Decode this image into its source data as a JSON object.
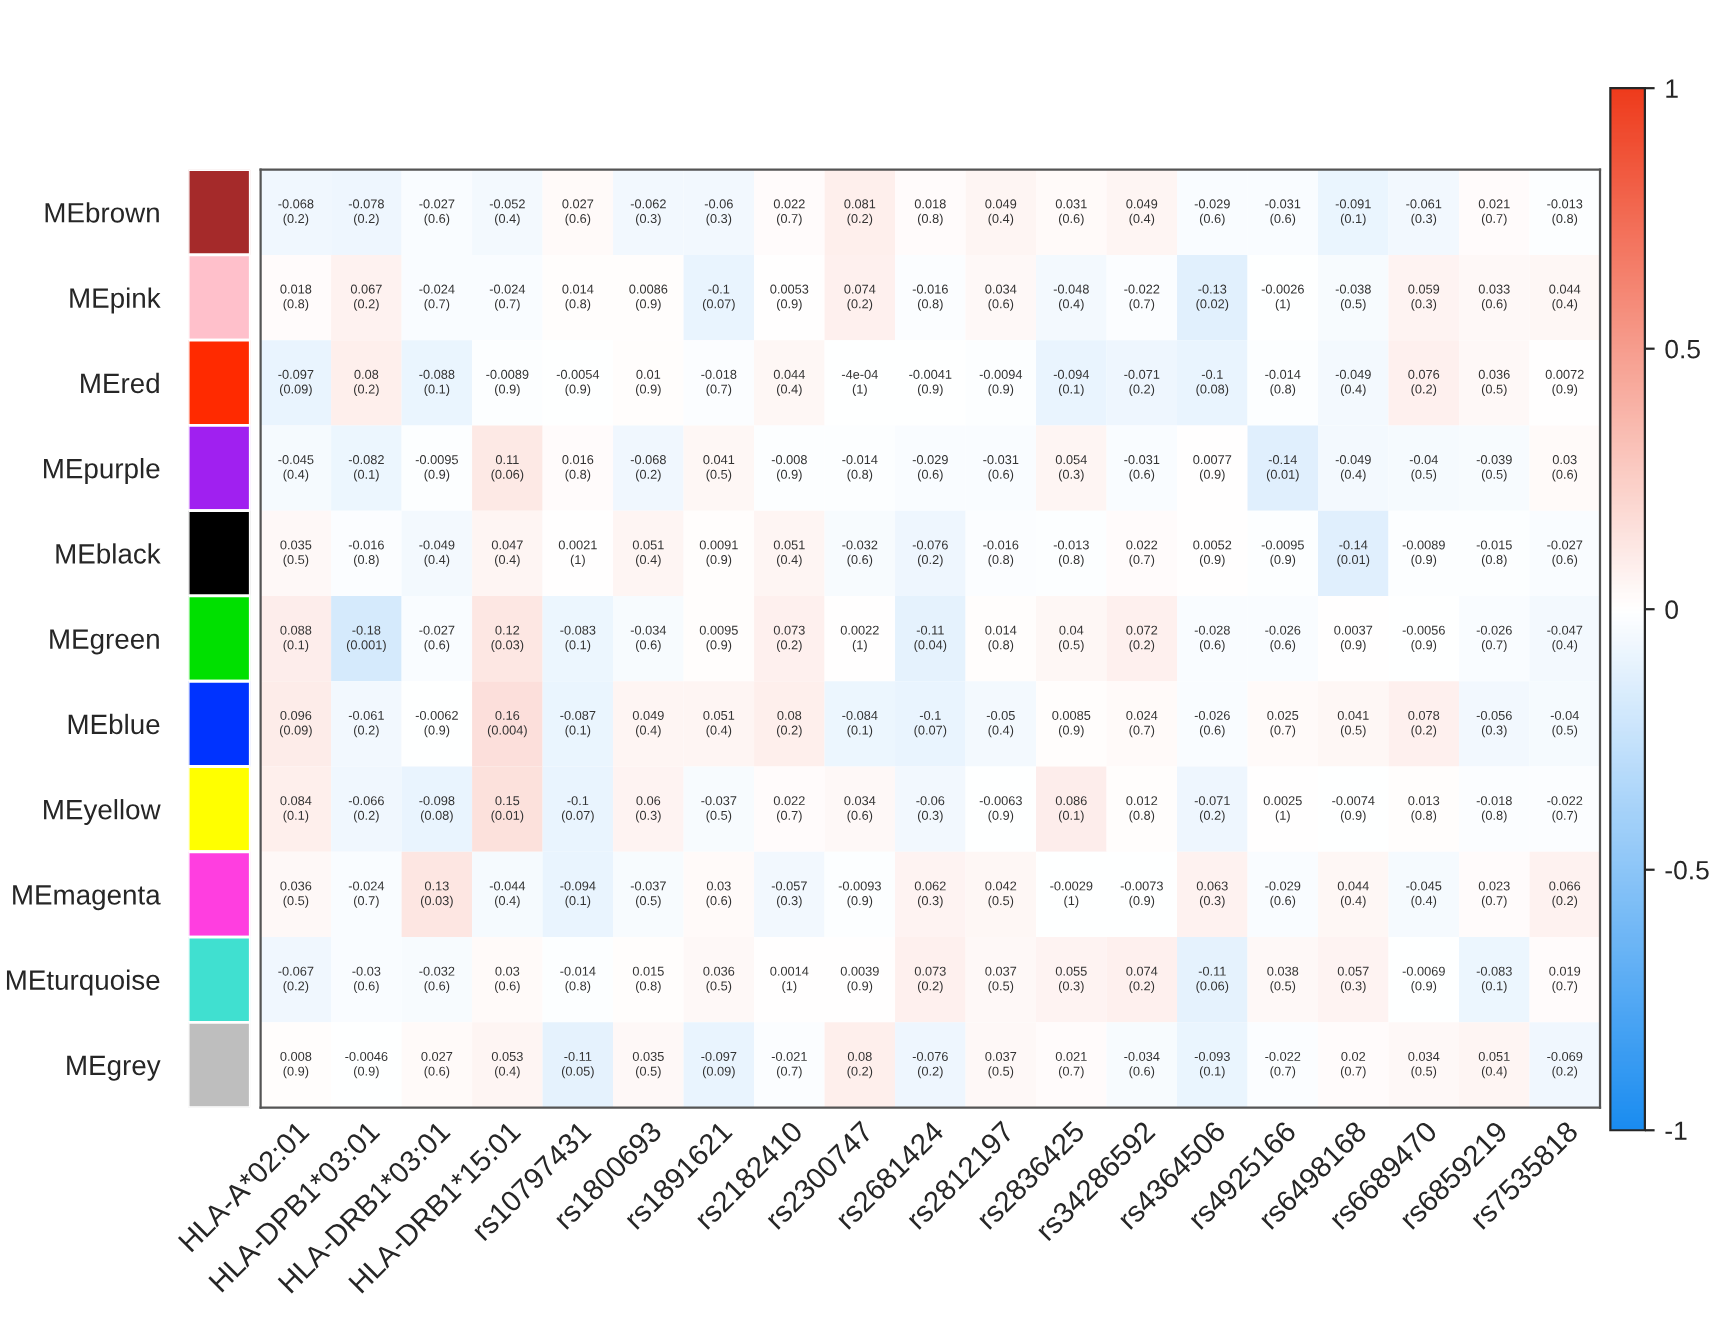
{
  "chart_data": {
    "type": "heatmap",
    "categories": [
      "HLA-A*02:01",
      "HLA-DPB1*03:01",
      "HLA-DRB1*03:01",
      "HLA-DRB1*15:01",
      "rs10797431",
      "rs1800693",
      "rs1891621",
      "rs2182410",
      "rs2300747",
      "rs2681424",
      "rs2812197",
      "rs2836425",
      "rs34286592",
      "rs4364506",
      "rs4925166",
      "rs6498168",
      "rs6689470",
      "rs6859219",
      "rs7535818"
    ],
    "y_categories": [
      "MEbrown",
      "MEpink",
      "MEred",
      "MEpurple",
      "MEblack",
      "MEgreen",
      "MEblue",
      "MEyellow",
      "MEmagenta",
      "MEturquoise",
      "MEgrey"
    ],
    "cells": [
      [
        -0.068,
        -0.078,
        -0.027,
        -0.052,
        0.027,
        -0.062,
        -0.06,
        0.022,
        0.081,
        0.018,
        0.049,
        0.031,
        0.049,
        -0.029,
        -0.031,
        -0.091,
        -0.061,
        0.021,
        -0.013
      ],
      [
        0.018,
        0.067,
        -0.024,
        -0.024,
        0.014,
        0.0086,
        -0.1,
        0.0053,
        0.074,
        -0.016,
        0.034,
        -0.048,
        -0.022,
        -0.13,
        -0.0026,
        -0.038,
        0.059,
        0.033,
        0.044
      ],
      [
        -0.097,
        0.08,
        -0.088,
        -0.0089,
        -0.0054,
        0.01,
        -0.018,
        0.044,
        -0.0004,
        -0.0041,
        -0.0094,
        -0.094,
        -0.071,
        -0.1,
        -0.014,
        -0.049,
        0.076,
        0.036,
        0.0072
      ],
      [
        -0.045,
        -0.082,
        -0.0095,
        0.11,
        0.016,
        -0.068,
        0.041,
        -0.008,
        -0.014,
        -0.029,
        -0.031,
        0.054,
        -0.031,
        0.0077,
        -0.14,
        -0.049,
        -0.04,
        -0.039,
        0.03
      ],
      [
        0.035,
        -0.016,
        -0.049,
        0.047,
        0.0021,
        0.051,
        0.0091,
        0.051,
        -0.032,
        -0.076,
        -0.016,
        -0.013,
        0.022,
        0.0052,
        -0.0095,
        -0.14,
        -0.0089,
        -0.015,
        -0.027
      ],
      [
        0.088,
        -0.18,
        -0.027,
        0.12,
        -0.083,
        -0.034,
        0.0095,
        0.073,
        0.0022,
        -0.11,
        0.014,
        0.04,
        0.072,
        -0.028,
        -0.026,
        0.0037,
        -0.0056,
        -0.026,
        -0.047
      ],
      [
        0.096,
        -0.061,
        -0.0062,
        0.16,
        -0.087,
        0.049,
        0.051,
        0.08,
        -0.084,
        -0.1,
        -0.05,
        0.0085,
        0.024,
        -0.026,
        0.025,
        0.041,
        0.078,
        -0.056,
        -0.04
      ],
      [
        0.084,
        -0.066,
        -0.098,
        0.15,
        -0.1,
        0.06,
        -0.037,
        0.022,
        0.034,
        -0.06,
        -0.0063,
        0.086,
        0.012,
        -0.071,
        0.0025,
        -0.0074,
        0.013,
        -0.018,
        -0.022
      ],
      [
        0.036,
        -0.024,
        0.13,
        -0.044,
        -0.094,
        -0.037,
        0.03,
        -0.057,
        -0.0093,
        0.062,
        0.042,
        -0.0029,
        -0.0073,
        0.063,
        -0.029,
        0.044,
        -0.045,
        0.023,
        0.066
      ],
      [
        -0.067,
        -0.03,
        -0.032,
        0.03,
        -0.014,
        0.015,
        0.036,
        0.0014,
        0.0039,
        0.073,
        0.037,
        0.055,
        0.074,
        -0.11,
        0.038,
        0.057,
        -0.0069,
        -0.083,
        0.019
      ],
      [
        0.008,
        -0.0046,
        0.027,
        0.053,
        -0.11,
        0.035,
        -0.097,
        -0.021,
        0.08,
        -0.076,
        0.037,
        0.021,
        -0.034,
        -0.093,
        -0.022,
        0.02,
        0.034,
        0.051,
        -0.069
      ]
    ],
    "cell_labels": [
      [
        "-0.068\n(0.2)",
        "-0.078\n(0.2)",
        "-0.027\n(0.6)",
        "-0.052\n(0.4)",
        "0.027\n(0.6)",
        "-0.062\n(0.3)",
        "-0.06\n(0.3)",
        "0.022\n(0.7)",
        "0.081\n(0.2)",
        "0.018\n(0.8)",
        "0.049\n(0.4)",
        "0.031\n(0.6)",
        "0.049\n(0.4)",
        "-0.029\n(0.6)",
        "-0.031\n(0.6)",
        "-0.091\n(0.1)",
        "-0.061\n(0.3)",
        "0.021\n(0.7)",
        "-0.013\n(0.8)"
      ],
      [
        "0.018\n(0.8)",
        "0.067\n(0.2)",
        "-0.024\n(0.7)",
        "-0.024\n(0.7)",
        "0.014\n(0.8)",
        "0.0086\n(0.9)",
        "-0.1\n(0.07)",
        "0.0053\n(0.9)",
        "0.074\n(0.2)",
        "-0.016\n(0.8)",
        "0.034\n(0.6)",
        "-0.048\n(0.4)",
        "-0.022\n(0.7)",
        "-0.13\n(0.02)",
        "-0.0026\n(1)",
        "-0.038\n(0.5)",
        "0.059\n(0.3)",
        "0.033\n(0.6)",
        "0.044\n(0.4)"
      ],
      [
        "-0.097\n(0.09)",
        "0.08\n(0.2)",
        "-0.088\n(0.1)",
        "-0.0089\n(0.9)",
        "-0.0054\n(0.9)",
        "0.01\n(0.9)",
        "-0.018\n(0.7)",
        "0.044\n(0.4)",
        "-4e-04\n(1)",
        "-0.0041\n(0.9)",
        "-0.0094\n(0.9)",
        "-0.094\n(0.1)",
        "-0.071\n(0.2)",
        "-0.1\n(0.08)",
        "-0.014\n(0.8)",
        "-0.049\n(0.4)",
        "0.076\n(0.2)",
        "0.036\n(0.5)",
        "0.0072\n(0.9)"
      ],
      [
        "-0.045\n(0.4)",
        "-0.082\n(0.1)",
        "-0.0095\n(0.9)",
        "0.11\n(0.06)",
        "0.016\n(0.8)",
        "-0.068\n(0.2)",
        "0.041\n(0.5)",
        "-0.008\n(0.9)",
        "-0.014\n(0.8)",
        "-0.029\n(0.6)",
        "-0.031\n(0.6)",
        "0.054\n(0.3)",
        "-0.031\n(0.6)",
        "0.0077\n(0.9)",
        "-0.14\n(0.01)",
        "-0.049\n(0.4)",
        "-0.04\n(0.5)",
        "-0.039\n(0.5)",
        "0.03\n(0.6)"
      ],
      [
        "0.035\n(0.5)",
        "-0.016\n(0.8)",
        "-0.049\n(0.4)",
        "0.047\n(0.4)",
        "0.0021\n(1)",
        "0.051\n(0.4)",
        "0.0091\n(0.9)",
        "0.051\n(0.4)",
        "-0.032\n(0.6)",
        "-0.076\n(0.2)",
        "-0.016\n(0.8)",
        "-0.013\n(0.8)",
        "0.022\n(0.7)",
        "0.0052\n(0.9)",
        "-0.0095\n(0.9)",
        "-0.14\n(0.01)",
        "-0.0089\n(0.9)",
        "-0.015\n(0.8)",
        "-0.027\n(0.6)"
      ],
      [
        "0.088\n(0.1)",
        "-0.18\n(0.001)",
        "-0.027\n(0.6)",
        "0.12\n(0.03)",
        "-0.083\n(0.1)",
        "-0.034\n(0.6)",
        "0.0095\n(0.9)",
        "0.073\n(0.2)",
        "0.0022\n(1)",
        "-0.11\n(0.04)",
        "0.014\n(0.8)",
        "0.04\n(0.5)",
        "0.072\n(0.2)",
        "-0.028\n(0.6)",
        "-0.026\n(0.6)",
        "0.0037\n(0.9)",
        "-0.0056\n(0.9)",
        "-0.026\n(0.7)",
        "-0.047\n(0.4)"
      ],
      [
        "0.096\n(0.09)",
        "-0.061\n(0.2)",
        "-0.0062\n(0.9)",
        "0.16\n(0.004)",
        "-0.087\n(0.1)",
        "0.049\n(0.4)",
        "0.051\n(0.4)",
        "0.08\n(0.2)",
        "-0.084\n(0.1)",
        "-0.1\n(0.07)",
        "-0.05\n(0.4)",
        "0.0085\n(0.9)",
        "0.024\n(0.7)",
        "-0.026\n(0.6)",
        "0.025\n(0.7)",
        "0.041\n(0.5)",
        "0.078\n(0.2)",
        "-0.056\n(0.3)",
        "-0.04\n(0.5)"
      ],
      [
        "0.084\n(0.1)",
        "-0.066\n(0.2)",
        "-0.098\n(0.08)",
        "0.15\n(0.01)",
        "-0.1\n(0.07)",
        "0.06\n(0.3)",
        "-0.037\n(0.5)",
        "0.022\n(0.7)",
        "0.034\n(0.6)",
        "-0.06\n(0.3)",
        "-0.0063\n(0.9)",
        "0.086\n(0.1)",
        "0.012\n(0.8)",
        "-0.071\n(0.2)",
        "0.0025\n(1)",
        "-0.0074\n(0.9)",
        "0.013\n(0.8)",
        "-0.018\n(0.8)",
        "-0.022\n(0.7)"
      ],
      [
        "0.036\n(0.5)",
        "-0.024\n(0.7)",
        "0.13\n(0.03)",
        "-0.044\n(0.4)",
        "-0.094\n(0.1)",
        "-0.037\n(0.5)",
        "0.03\n(0.6)",
        "-0.057\n(0.3)",
        "-0.0093\n(0.9)",
        "0.062\n(0.3)",
        "0.042\n(0.5)",
        "-0.0029\n(1)",
        "-0.0073\n(0.9)",
        "0.063\n(0.3)",
        "-0.029\n(0.6)",
        "0.044\n(0.4)",
        "-0.045\n(0.4)",
        "0.023\n(0.7)",
        "0.066\n(0.2)"
      ],
      [
        "-0.067\n(0.2)",
        "-0.03\n(0.6)",
        "-0.032\n(0.6)",
        "0.03\n(0.6)",
        "-0.014\n(0.8)",
        "0.015\n(0.8)",
        "0.036\n(0.5)",
        "0.0014\n(1)",
        "0.0039\n(0.9)",
        "0.073\n(0.2)",
        "0.037\n(0.5)",
        "0.055\n(0.3)",
        "0.074\n(0.2)",
        "-0.11\n(0.06)",
        "0.038\n(0.5)",
        "0.057\n(0.3)",
        "-0.0069\n(0.9)",
        "-0.083\n(0.1)",
        "0.019\n(0.7)"
      ],
      [
        "0.008\n(0.9)",
        "-0.0046\n(0.9)",
        "0.027\n(0.6)",
        "0.053\n(0.4)",
        "-0.11\n(0.05)",
        "0.035\n(0.5)",
        "-0.097\n(0.09)",
        "-0.021\n(0.7)",
        "0.08\n(0.2)",
        "-0.076\n(0.2)",
        "0.037\n(0.5)",
        "0.021\n(0.7)",
        "-0.034\n(0.6)",
        "-0.093\n(0.1)",
        "-0.022\n(0.7)",
        "0.02\n(0.7)",
        "0.034\n(0.5)",
        "0.051\n(0.4)",
        "-0.069\n(0.2)"
      ]
    ],
    "clim": [
      -1,
      1
    ],
    "cticks": [
      {
        "value": -1,
        "label": "-1"
      },
      {
        "value": -0.5,
        "label": "-0.5"
      },
      0,
      0.5,
      1
    ]
  }
}
